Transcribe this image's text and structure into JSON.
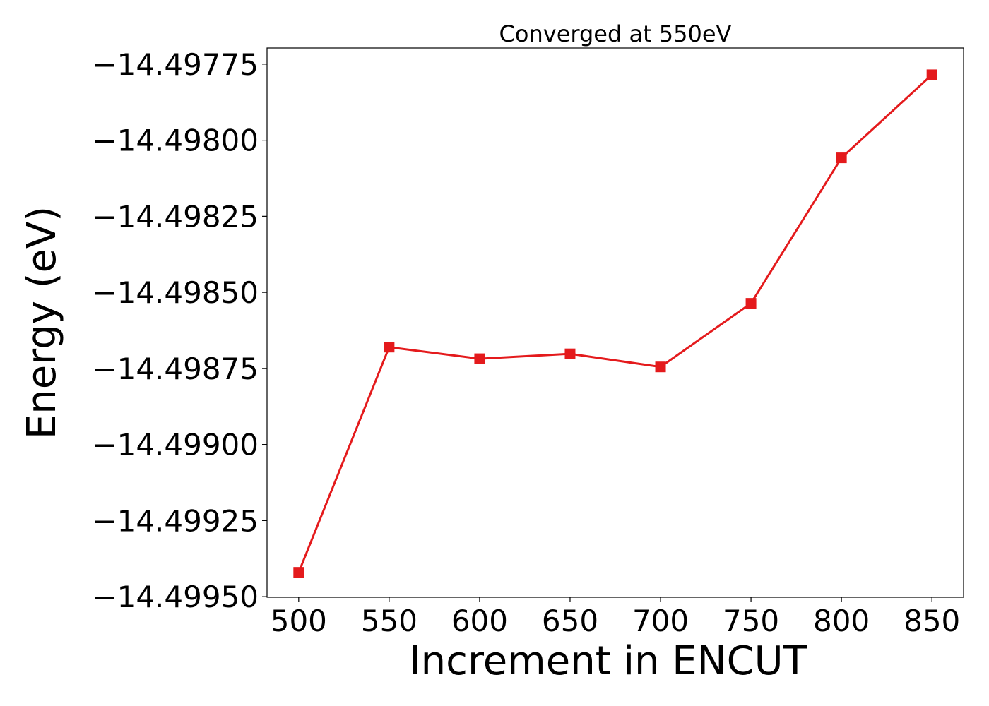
{
  "chart_data": {
    "type": "line",
    "title": "Converged at 550eV",
    "xlabel": "Increment in ENCUT",
    "ylabel": "Energy (eV)",
    "x_ticks": [
      "500",
      "550",
      "600",
      "650",
      "700",
      "750",
      "800",
      "850"
    ],
    "y_ticks": [
      "−14.49775",
      "−14.49800",
      "−14.49825",
      "−14.49850",
      "−14.49875",
      "−14.49900",
      "−14.49925",
      "−14.49950"
    ],
    "y_tick_values": [
      -14.49775,
      -14.498,
      -14.49825,
      -14.4985,
      -14.49875,
      -14.499,
      -14.49925,
      -14.4995
    ],
    "xlim": [
      482.5,
      867.5
    ],
    "ylim": [
      -14.499502,
      -14.497697
    ],
    "grid": false,
    "series": [
      {
        "color": "#e41a1c",
        "marker": "square",
        "x": [
          500,
          550,
          600,
          650,
          700,
          750,
          800,
          850
        ],
        "y": [
          -14.49942,
          -14.49868,
          -14.498718,
          -14.498702,
          -14.498745,
          -14.498536,
          -14.498058,
          -14.497785
        ]
      }
    ]
  }
}
